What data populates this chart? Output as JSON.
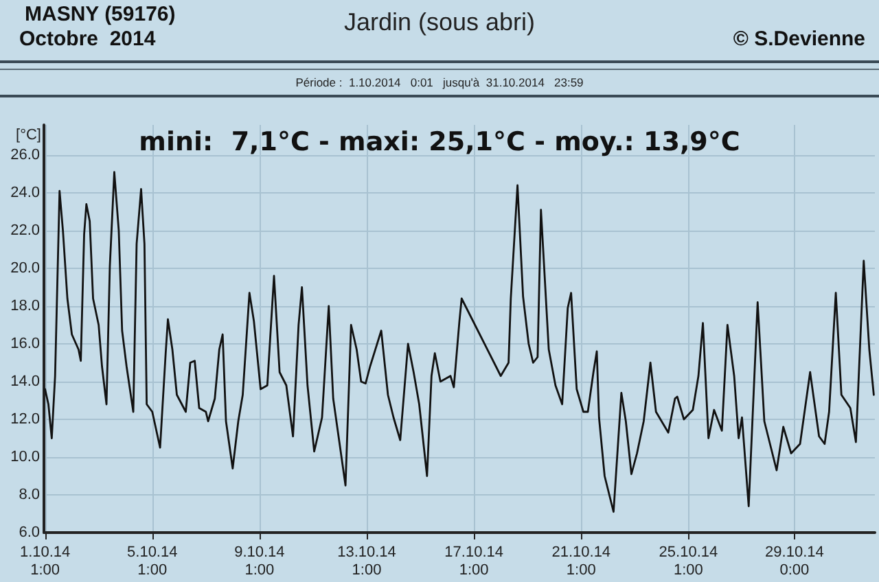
{
  "chart_data": {
    "type": "line",
    "title": "Jardin (sous abri)",
    "subtitle": "Période :  1.10.2014   0:01   jusqu'à  31.10.2014   23:59",
    "ylabel": "[°C]",
    "annotations": [
      "MASNY (59176)",
      "Octobre  2014",
      "© S.Devienne",
      "mini:  7,1°C - maxi: 25,1°C - moy.: 13,9°C"
    ],
    "x": [
      "2014-10-01T01:00",
      "2014-10-01T04:00",
      "2014-10-01T07:00",
      "2014-10-01T10:00",
      "2014-10-01T14:00",
      "2014-10-01T17:00",
      "2014-10-01T21:00",
      "2014-10-02T01:00",
      "2014-10-02T07:00",
      "2014-10-02T09:00",
      "2014-10-02T12:00",
      "2014-10-02T14:00",
      "2014-10-02T17:00",
      "2014-10-02T20:00",
      "2014-10-03T01:00",
      "2014-10-03T04:00",
      "2014-10-03T08:00",
      "2014-10-03T11:00",
      "2014-10-03T15:00",
      "2014-10-03T19:00",
      "2014-10-03T22:00",
      "2014-10-04T02:00",
      "2014-10-04T08:00",
      "2014-10-04T11:00",
      "2014-10-04T15:00",
      "2014-10-04T18:00",
      "2014-10-04T20:00",
      "2014-10-05T01:00",
      "2014-10-05T08:00",
      "2014-10-05T13:00",
      "2014-10-05T15:00",
      "2014-10-05T19:00",
      "2014-10-05T23:00",
      "2014-10-06T07:00",
      "2014-10-06T11:00",
      "2014-10-06T15:00",
      "2014-10-06T19:00",
      "2014-10-07T01:00",
      "2014-10-07T03:00",
      "2014-10-07T09:00",
      "2014-10-07T13:00",
      "2014-10-07T16:00",
      "2014-10-07T19:00",
      "2014-10-08T01:00",
      "2014-10-08T06:00",
      "2014-10-08T10:00",
      "2014-10-08T16:00",
      "2014-10-08T20:00",
      "2014-10-09T02:00",
      "2014-10-09T08:00",
      "2014-10-09T14:00",
      "2014-10-09T19:00",
      "2014-10-10T01:00",
      "2014-10-10T07:00",
      "2014-10-10T12:00",
      "2014-10-10T15:00",
      "2014-10-10T20:00",
      "2014-10-11T02:00",
      "2014-10-11T09:00",
      "2014-10-11T15:00",
      "2014-10-11T19:00",
      "2014-10-12T06:00",
      "2014-10-12T11:00",
      "2014-10-12T16:00",
      "2014-10-12T20:00",
      "2014-10-13T00:00",
      "2014-10-13T04:00",
      "2014-10-13T14:00",
      "2014-10-13T20:00",
      "2014-10-14T01:00",
      "2014-10-14T07:00",
      "2014-10-14T14:00",
      "2014-10-14T19:00",
      "2014-10-15T00:00",
      "2014-10-15T07:00",
      "2014-10-15T11:00",
      "2014-10-15T14:00",
      "2014-10-15T19:00",
      "2014-10-16T04:00",
      "2014-10-16T07:00",
      "2014-10-16T12:00",
      "2014-10-16T14:00",
      "2014-10-18T01:00",
      "2014-10-18T08:00",
      "2014-10-18T10:00",
      "2014-10-18T16:00",
      "2014-10-18T21:00",
      "2014-10-19T02:00",
      "2014-10-19T06:00",
      "2014-10-19T10:00",
      "2014-10-19T13:00",
      "2014-10-19T20:00",
      "2014-10-20T02:00",
      "2014-10-20T08:00",
      "2014-10-20T13:00",
      "2014-10-20T16:00",
      "2014-10-20T21:00",
      "2014-10-21T03:00",
      "2014-10-21T07:00",
      "2014-10-21T12:00",
      "2014-10-21T15:00",
      "2014-10-21T17:00",
      "2014-10-21T22:00",
      "2014-10-22T06:00",
      "2014-10-22T13:00",
      "2014-10-22T17:00",
      "2014-10-22T22:00",
      "2014-10-23T03:00",
      "2014-10-23T09:00",
      "2014-10-23T15:00",
      "2014-10-23T20:00",
      "2014-10-24T07:00",
      "2014-10-24T13:00",
      "2014-10-24T15:00",
      "2014-10-24T21:00",
      "2014-10-25T05:00",
      "2014-10-25T10:00",
      "2014-10-25T14:00",
      "2014-10-25T19:00",
      "2014-10-26T00:00",
      "2014-10-26T07:00",
      "2014-10-26T12:00",
      "2014-10-26T18:00",
      "2014-10-26T22:00",
      "2014-10-27T01:00",
      "2014-10-27T07:00",
      "2014-10-27T15:00",
      "2014-10-27T21:00",
      "2014-10-28T08:00",
      "2014-10-28T14:00",
      "2014-10-28T21:00",
      "2014-10-29T05:00",
      "2014-10-29T14:00",
      "2014-10-29T22:00",
      "2014-10-30T03:00",
      "2014-10-30T07:00",
      "2014-10-30T13:00",
      "2014-10-30T18:00",
      "2014-10-31T02:00",
      "2014-10-31T07:00",
      "2014-10-31T14:00",
      "2014-10-31T19:00",
      "2014-10-31T23:00"
    ],
    "values": [
      13.6,
      12.8,
      11.0,
      14.3,
      24.1,
      22.0,
      18.4,
      16.5,
      15.7,
      15.1,
      21.8,
      23.4,
      22.5,
      18.4,
      17.0,
      14.8,
      12.8,
      20.1,
      25.1,
      22.0,
      16.7,
      14.8,
      12.4,
      21.3,
      24.2,
      21.3,
      12.8,
      12.4,
      10.5,
      15.5,
      17.3,
      15.7,
      13.3,
      12.4,
      15.0,
      15.1,
      12.6,
      12.4,
      11.9,
      13.1,
      15.7,
      16.5,
      11.9,
      9.4,
      11.9,
      13.3,
      18.7,
      17.2,
      13.6,
      13.8,
      19.6,
      14.5,
      13.8,
      11.1,
      17.0,
      19.0,
      13.8,
      10.3,
      12.1,
      18.0,
      13.1,
      8.5,
      17.0,
      15.7,
      14.0,
      13.9,
      14.8,
      16.7,
      13.3,
      12.1,
      10.9,
      16.0,
      14.5,
      12.8,
      9.0,
      14.3,
      15.5,
      14.0,
      14.3,
      13.7,
      17.2,
      18.4,
      14.3,
      15.0,
      18.4,
      24.4,
      18.5,
      16.0,
      15.0,
      15.3,
      23.1,
      15.7,
      13.8,
      12.8,
      17.9,
      18.7,
      13.6,
      12.4,
      12.4,
      14.5,
      15.6,
      12.1,
      9.0,
      7.1,
      13.4,
      11.9,
      9.1,
      10.2,
      11.9,
      15.0,
      12.4,
      11.3,
      13.1,
      13.2,
      12.0,
      12.5,
      14.3,
      17.1,
      11.0,
      12.5,
      11.4,
      17.0,
      14.3,
      11.0,
      12.1,
      7.4,
      18.2,
      11.9,
      9.3,
      11.6,
      10.2,
      10.7,
      14.5,
      11.1,
      10.7,
      12.4,
      18.7,
      13.3,
      12.6,
      10.8,
      20.4,
      15.7,
      13.3
    ],
    "color": "#111111",
    "line_style": "solid",
    "marker": "none",
    "xlim": [
      "2014-10-01T00:01",
      "2014-10-31T23:59"
    ],
    "xticks": [
      {
        "value": "2014-10-01T01:00",
        "label": "1.10.14\n1:00"
      },
      {
        "value": "2014-10-05T01:00",
        "label": "5.10.14\n1:00"
      },
      {
        "value": "2014-10-09T01:00",
        "label": "9.10.14\n1:00"
      },
      {
        "value": "2014-10-13T01:00",
        "label": "13.10.14\n1:00"
      },
      {
        "value": "2014-10-17T01:00",
        "label": "17.10.14\n1:00"
      },
      {
        "value": "2014-10-21T01:00",
        "label": "21.10.14\n1:00"
      },
      {
        "value": "2014-10-25T01:00",
        "label": "25.10.14\n1:00"
      },
      {
        "value": "2014-10-29T00:00",
        "label": "29.10.14\n0:00"
      }
    ],
    "ylim": [
      6,
      27.6
    ],
    "yticks": [
      {
        "value": 6,
        "label": "6.0"
      },
      {
        "value": 8,
        "label": "8.0"
      },
      {
        "value": 10,
        "label": "10.0"
      },
      {
        "value": 12,
        "label": "12.0"
      },
      {
        "value": 14,
        "label": "14.0"
      },
      {
        "value": 16,
        "label": "16.0"
      },
      {
        "value": 18,
        "label": "18.0"
      },
      {
        "value": 20,
        "label": "20.0"
      },
      {
        "value": 22,
        "label": "22.0"
      },
      {
        "value": 24,
        "label": "24.0"
      },
      {
        "value": 26,
        "label": "26.0"
      }
    ],
    "grid": true
  }
}
